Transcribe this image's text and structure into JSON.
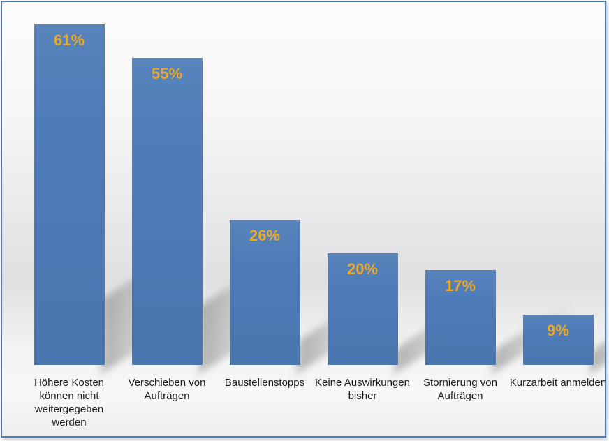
{
  "chart_data": {
    "type": "bar",
    "title": "",
    "xlabel": "",
    "ylabel": "",
    "categories": [
      "Höhere Kosten können nicht weitergegeben werden",
      "Verschieben von Aufträgen",
      "Baustellenstopps",
      "Keine Auswirkungen bisher",
      "Stornierung von Aufträgen",
      "Kurzarbeit anmelden"
    ],
    "categories_lines": [
      [
        "Höhere Kosten",
        "können nicht",
        "weitergegeben",
        "werden"
      ],
      [
        "Verschieben von",
        "Aufträgen"
      ],
      [
        "Baustellenstopps"
      ],
      [
        "Keine Auswirkungen",
        "bisher"
      ],
      [
        "Stornierung von",
        "Aufträgen"
      ],
      [
        "Kurzarbeit anmelden"
      ]
    ],
    "values": [
      61,
      55,
      26,
      20,
      17,
      9
    ],
    "value_labels": [
      "61%",
      "55%",
      "26%",
      "20%",
      "17%",
      "9%"
    ],
    "ylim": [
      0,
      65
    ],
    "grid": false,
    "legend": false,
    "axes_visible": false,
    "bar_color": "#4E7CB8",
    "value_label_color": "#E9A82A",
    "category_label_color": "#1A1A1A",
    "frame_border_color": "#4E7BB4"
  }
}
